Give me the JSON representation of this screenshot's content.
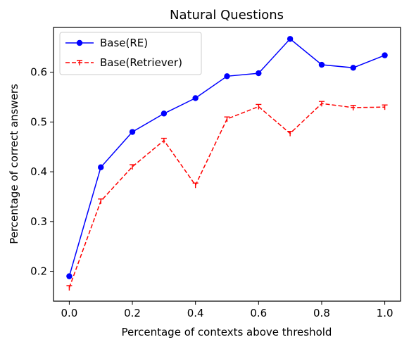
{
  "chart_data": {
    "type": "line",
    "title": "Natural Questions",
    "xlabel": "Percentage of contexts above threshold",
    "ylabel": "Percentage of correct answers",
    "xlim": [
      -0.05,
      1.05
    ],
    "ylim": [
      0.14,
      0.69
    ],
    "x_ticks": [
      0.0,
      0.2,
      0.4,
      0.6,
      0.8,
      1.0
    ],
    "x_tick_labels": [
      "0.0",
      "0.2",
      "0.4",
      "0.6",
      "0.8",
      "1.0"
    ],
    "y_ticks": [
      0.2,
      0.3,
      0.4,
      0.5,
      0.6
    ],
    "y_tick_labels": [
      "0.2",
      "0.3",
      "0.4",
      "0.5",
      "0.6"
    ],
    "grid": false,
    "legend_position": "top-left",
    "x": [
      0.0,
      0.1,
      0.2,
      0.3,
      0.4,
      0.5,
      0.6,
      0.7,
      0.8,
      0.9,
      1.0
    ],
    "series": [
      {
        "name": "Base(RE)",
        "color": "#0000ff",
        "line_style": "solid",
        "marker": "circle",
        "values": [
          0.19,
          0.409,
          0.48,
          0.517,
          0.548,
          0.592,
          0.598,
          0.667,
          0.615,
          0.609,
          0.634
        ]
      },
      {
        "name": "Base(Retriever)",
        "color": "#ff0000",
        "line_style": "dashed",
        "marker": "tri-down",
        "values": [
          0.167,
          0.341,
          0.41,
          0.463,
          0.373,
          0.506,
          0.531,
          0.477,
          0.537,
          0.529,
          0.53
        ]
      }
    ]
  }
}
